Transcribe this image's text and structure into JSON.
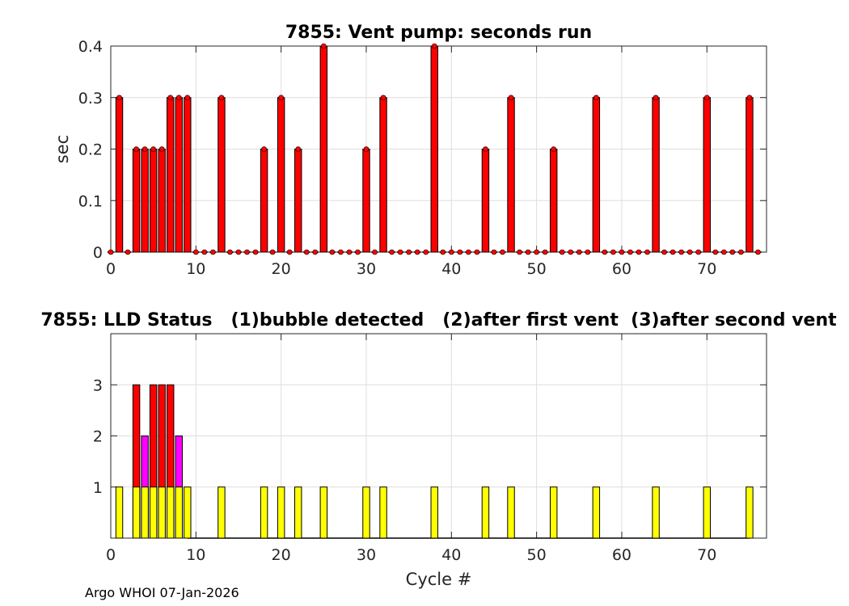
{
  "footer": "Argo WHOI 07-Jan-2026",
  "chart_data": [
    {
      "type": "bar",
      "title": "7855: Vent pump: seconds run",
      "xlabel": "",
      "ylabel": "sec",
      "xlim": [
        0,
        77
      ],
      "ylim": [
        0,
        0.4
      ],
      "xticks": [
        0,
        10,
        20,
        30,
        40,
        50,
        60,
        70
      ],
      "yticks": [
        0,
        0.1,
        0.2,
        0.3,
        0.4
      ],
      "ytick_labels": [
        "0",
        "0.1",
        "0.2",
        "0.3",
        "0.4"
      ],
      "grid": true,
      "color": "#ff0000",
      "x": [
        0,
        1,
        2,
        3,
        4,
        5,
        6,
        7,
        8,
        9,
        10,
        11,
        12,
        13,
        14,
        15,
        16,
        17,
        18,
        19,
        20,
        21,
        22,
        23,
        24,
        25,
        26,
        27,
        28,
        29,
        30,
        31,
        32,
        33,
        34,
        35,
        36,
        37,
        38,
        39,
        40,
        41,
        42,
        43,
        44,
        45,
        46,
        47,
        48,
        49,
        50,
        51,
        52,
        53,
        54,
        55,
        56,
        57,
        58,
        59,
        60,
        61,
        62,
        63,
        64,
        65,
        66,
        67,
        68,
        69,
        70,
        71,
        72,
        73,
        74,
        75,
        76
      ],
      "values": [
        0,
        0.3,
        0,
        0.2,
        0.2,
        0.2,
        0.2,
        0.3,
        0.3,
        0.3,
        0,
        0,
        0,
        0.3,
        0,
        0,
        0,
        0,
        0.2,
        0,
        0.3,
        0,
        0.2,
        0,
        0,
        0.4,
        0,
        0,
        0,
        0,
        0.2,
        0,
        0.3,
        0,
        0,
        0,
        0,
        0,
        0.4,
        0,
        0,
        0,
        0,
        0,
        0.2,
        0,
        0,
        0.3,
        0,
        0,
        0,
        0,
        0.2,
        0,
        0,
        0,
        0,
        0.3,
        0,
        0,
        0,
        0,
        0,
        0,
        0.3,
        0,
        0,
        0,
        0,
        0,
        0.3,
        0,
        0,
        0,
        0,
        0.3,
        0
      ]
    },
    {
      "type": "bar",
      "title": "7855: LLD Status   (1)bubble detected   (2)after first vent  (3)after second vent",
      "xlabel": "Cycle #",
      "ylabel": "",
      "xlim": [
        0,
        77
      ],
      "ylim": [
        0,
        4
      ],
      "xticks": [
        0,
        10,
        20,
        30,
        40,
        50,
        60,
        70
      ],
      "yticks": [
        1,
        2,
        3
      ],
      "ytick_labels": [
        "1",
        "2",
        "3"
      ],
      "grid": true,
      "series": [
        {
          "color": "#ff0000",
          "points": [
            [
              3,
              3
            ],
            [
              5,
              3
            ],
            [
              6,
              3
            ],
            [
              7,
              3
            ]
          ]
        },
        {
          "color": "#ff00ff",
          "points": [
            [
              4,
              2
            ],
            [
              8,
              2
            ]
          ]
        },
        {
          "color": "#ffff00",
          "points": [
            [
              1,
              1
            ],
            [
              3,
              1
            ],
            [
              4,
              1
            ],
            [
              5,
              1
            ],
            [
              6,
              1
            ],
            [
              7,
              1
            ],
            [
              8,
              1
            ],
            [
              9,
              1
            ],
            [
              13,
              1
            ],
            [
              18,
              1
            ],
            [
              20,
              1
            ],
            [
              22,
              1
            ],
            [
              25,
              1
            ],
            [
              30,
              1
            ],
            [
              32,
              1
            ],
            [
              38,
              1
            ],
            [
              44,
              1
            ],
            [
              47,
              1
            ],
            [
              52,
              1
            ],
            [
              57,
              1
            ],
            [
              64,
              1
            ],
            [
              70,
              1
            ],
            [
              75,
              1
            ]
          ]
        }
      ],
      "baseline_segments": [
        [
          9,
          18
        ],
        [
          18,
          75
        ]
      ]
    }
  ]
}
